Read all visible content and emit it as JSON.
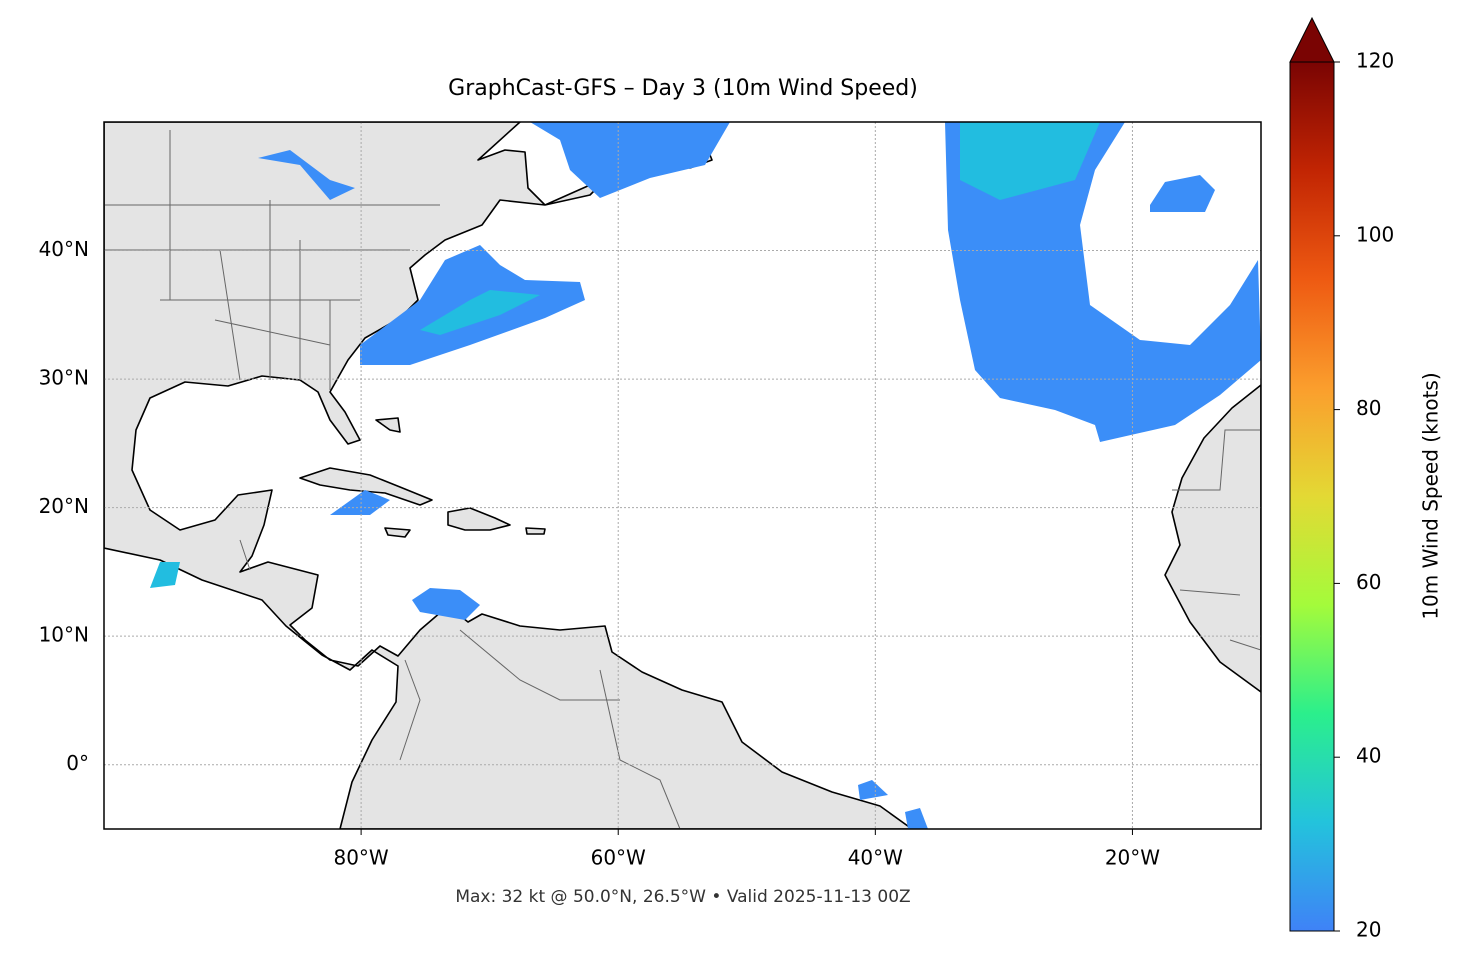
{
  "chart_data": {
    "type": "map",
    "title": "GraphCast-GFS – Day 3 (10m Wind Speed)",
    "footnote": "Max: 32 kt @ 50.0°N, 26.5°W • Valid 2025-11-13 00Z",
    "xlim": [
      -100,
      -10
    ],
    "ylim": [
      -5,
      50
    ],
    "xticks": [
      {
        "value": -80,
        "label": "80°W"
      },
      {
        "value": -60,
        "label": "60°W"
      },
      {
        "value": -40,
        "label": "40°W"
      },
      {
        "value": -20,
        "label": "20°W"
      }
    ],
    "yticks": [
      {
        "value": 0,
        "label": "0°"
      },
      {
        "value": 10,
        "label": "10°N"
      },
      {
        "value": 20,
        "label": "20°N"
      },
      {
        "value": 30,
        "label": "30°N"
      },
      {
        "value": 40,
        "label": "40°N"
      }
    ],
    "grid": true,
    "colorbar": {
      "label": "10m Wind Speed (knots)",
      "lim": [
        20,
        120
      ],
      "ticks": [
        20,
        40,
        60,
        80,
        100,
        120
      ],
      "extend": "max",
      "colors": [
        "#3f82f7",
        "#23c3dc",
        "#2bef8c",
        "#a4fb3b",
        "#e3d934",
        "#fb9e2d",
        "#ee5a12",
        "#c22503",
        "#7a0403"
      ]
    }
  }
}
